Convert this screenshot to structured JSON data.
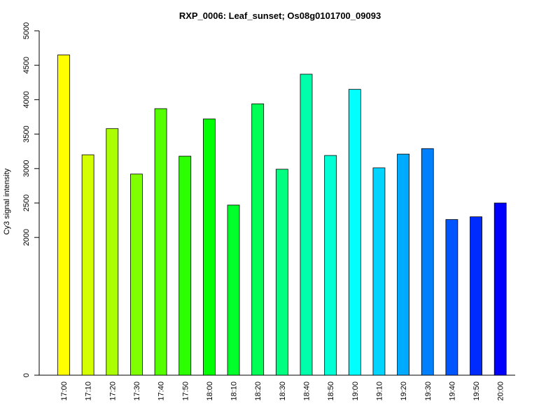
{
  "chart_data": {
    "type": "bar",
    "title": "RXP_0006: Leaf_sunset; Os08g0101700_09093",
    "xlabel": "",
    "ylabel": "Cy3 signal intensity",
    "ylim": [
      0,
      5000
    ],
    "yticks": [
      0,
      2000,
      2500,
      3000,
      3500,
      4000,
      4500,
      5000
    ],
    "categories": [
      "17:00",
      "17:10",
      "17:20",
      "17:30",
      "17:40",
      "17:50",
      "18:00",
      "18:10",
      "18:20",
      "18:30",
      "18:40",
      "18:50",
      "19:00",
      "19:10",
      "19:20",
      "19:30",
      "19:40",
      "19:50",
      "20:00"
    ],
    "values": [
      4650,
      3200,
      3580,
      2920,
      3870,
      3180,
      3720,
      2470,
      3940,
      2990,
      4370,
      3190,
      4150,
      3010,
      3210,
      3290,
      2260,
      2300,
      2500
    ],
    "colors": [
      "#ffff00",
      "#d4ff00",
      "#aaff00",
      "#80ff00",
      "#55ff00",
      "#2bff00",
      "#00ff00",
      "#00ff2b",
      "#00ff55",
      "#00ff80",
      "#00ffaa",
      "#00ffd4",
      "#00ffff",
      "#00d4ff",
      "#00aaff",
      "#0080ff",
      "#0055ff",
      "#002bff",
      "#0000ff"
    ],
    "grid": false,
    "legend": "none"
  }
}
